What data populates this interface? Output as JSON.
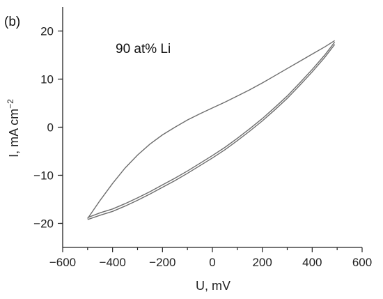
{
  "chart_data": {
    "type": "line",
    "panel_label": "(b)",
    "annotation": "90 at% Li",
    "xlabel": "U, mV",
    "ylabel_main": "I, mA cm",
    "ylabel_sup": "−2",
    "xlim": [
      -600,
      600
    ],
    "ylim": [
      -25,
      25
    ],
    "xticks": [
      -600,
      -400,
      -200,
      0,
      200,
      400,
      600
    ],
    "xtick_labels": [
      "−600",
      "−400",
      "−200",
      "0",
      "200",
      "400",
      "600"
    ],
    "yticks": [
      -20,
      -10,
      0,
      10,
      20
    ],
    "ytick_labels": [
      "−20",
      "−10",
      "0",
      "10",
      "20"
    ],
    "grid": false,
    "series": [
      {
        "x": [
          -500,
          -450,
          -400,
          -350,
          -300,
          -250,
          -200,
          -150,
          -100,
          -50,
          0,
          50,
          100,
          150,
          200,
          250,
          300,
          350,
          400,
          450,
          490
        ],
        "y": [
          -19.0,
          -15.2,
          -11.7,
          -8.5,
          -5.8,
          -3.5,
          -1.6,
          0.0,
          1.5,
          2.8,
          4.0,
          5.2,
          6.5,
          7.8,
          9.2,
          10.7,
          12.2,
          13.7,
          15.2,
          16.7,
          18.0
        ]
      },
      {
        "x": [
          490,
          450,
          400,
          350,
          300,
          250,
          200,
          150,
          100,
          50,
          0,
          -50,
          -100,
          -150,
          -200,
          -250,
          -300,
          -350,
          -400,
          -450,
          -500
        ],
        "y": [
          17.2,
          14.5,
          11.5,
          8.7,
          6.0,
          3.6,
          1.3,
          -0.8,
          -2.8,
          -4.7,
          -6.4,
          -8.0,
          -9.6,
          -11.1,
          -12.5,
          -13.9,
          -15.2,
          -16.4,
          -17.5,
          -18.3,
          -19.2
        ]
      },
      {
        "x": [
          490,
          450,
          400,
          350,
          300,
          250,
          200,
          150,
          100,
          50,
          0,
          -50,
          -100,
          -150,
          -200,
          -250,
          -300,
          -350,
          -400,
          -450,
          -500
        ],
        "y": [
          17.7,
          15.0,
          12.0,
          9.2,
          6.5,
          4.1,
          1.8,
          -0.3,
          -2.3,
          -4.2,
          -5.9,
          -7.5,
          -9.1,
          -10.6,
          -12.0,
          -13.4,
          -14.7,
          -15.9,
          -17.0,
          -17.8,
          -18.8
        ]
      }
    ]
  }
}
